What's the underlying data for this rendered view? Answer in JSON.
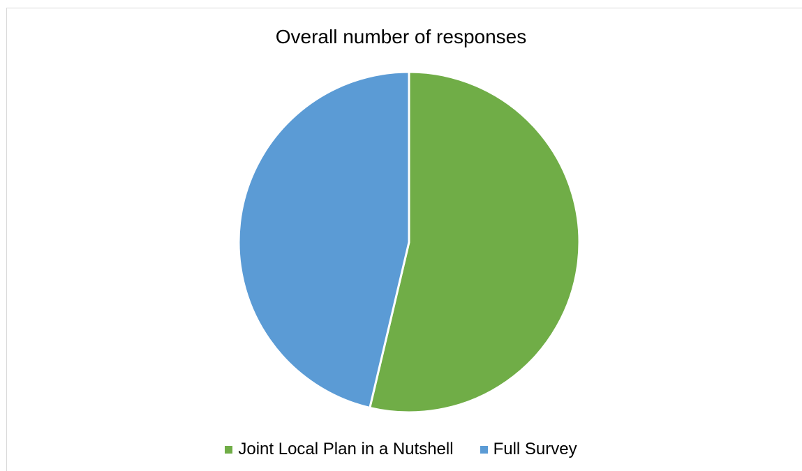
{
  "chart_data": {
    "type": "pie",
    "title": "Overall number of responses",
    "categories": [
      "Joint Local Plan in a Nutshell",
      "Full Survey"
    ],
    "values": [
      53.7,
      46.3
    ],
    "unit": "percent",
    "colors": [
      "#70AD47",
      "#5B9BD5"
    ],
    "legend_placement": "bottom",
    "start_angle_deg": 0,
    "direction": "clockwise"
  }
}
